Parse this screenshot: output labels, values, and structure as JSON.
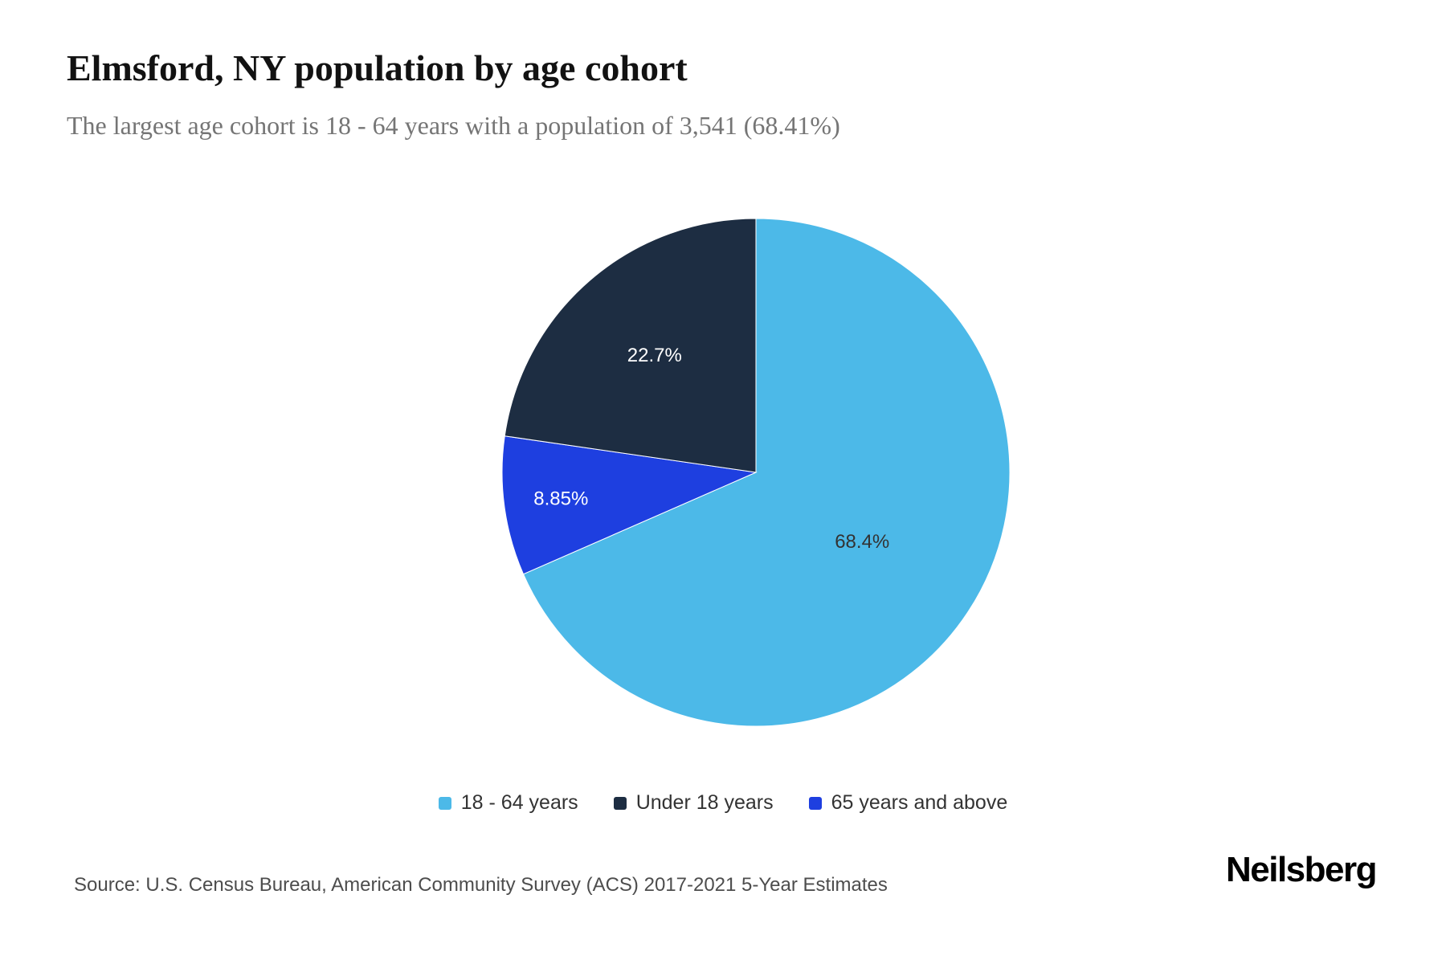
{
  "header": {
    "title": "Elmsford, NY population by age cohort",
    "subtitle": "The largest age cohort is 18 - 64 years with a population of 3,541 (68.41%)"
  },
  "chart_data": {
    "type": "pie",
    "title": "Elmsford, NY population by age cohort",
    "unit": "percent of population",
    "slices": [
      {
        "id": "18-64-years",
        "label": "18 - 64 years",
        "value": 68.4,
        "display_label": "68.4%",
        "color": "#4cb9e8",
        "label_color": "#333333",
        "label_radius_frac": 0.5
      },
      {
        "id": "65-years-and-above",
        "label": "65 years and above",
        "value": 8.85,
        "display_label": "8.85%",
        "color": "#1e3fe0",
        "label_color": "#ffffff",
        "label_radius_frac": 0.775
      },
      {
        "id": "under-18-years",
        "label": "Under 18 years",
        "value": 22.7,
        "display_label": "22.7%",
        "color": "#1d2d42",
        "label_color": "#ffffff",
        "label_radius_frac": 0.61
      }
    ],
    "legend_order": [
      0,
      2,
      1
    ],
    "start_angle_deg": 0,
    "direction": "clockwise",
    "legend_position": "bottom",
    "largest_cohort": {
      "label": "18 - 64 years",
      "population": "3,541",
      "percent": "68.41%"
    }
  },
  "footer": {
    "source": "Source: U.S. Census Bureau, American Community Survey (ACS) 2017-2021 5-Year Estimates",
    "brand": "Neilsberg"
  }
}
